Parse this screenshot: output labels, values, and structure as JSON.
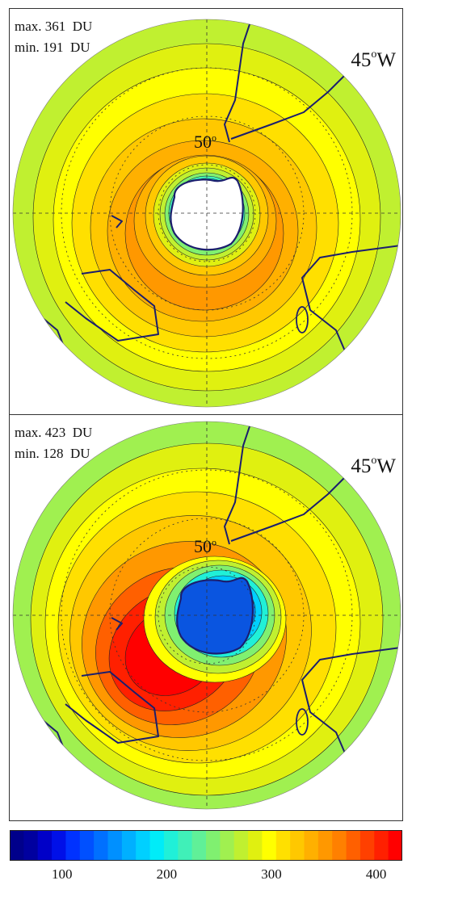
{
  "panels": [
    {
      "max_label": "max. 361  DU",
      "min_label": "min. 191  DU",
      "lon_value": "45",
      "lon_suffix": "W",
      "lat_value": "50",
      "lat_sup": "o",
      "lon_sup": "o",
      "max_du": 361,
      "min_du": 191
    },
    {
      "max_label": "max. 423  DU",
      "min_label": "min. 128  DU",
      "lon_value": "45",
      "lon_suffix": "W",
      "lat_value": "50",
      "lat_sup": "o",
      "lon_sup": "o",
      "max_du": 423,
      "min_du": 128
    }
  ],
  "colorbar": {
    "min": 50,
    "max": 425,
    "ticks": [
      "100",
      "200",
      "300",
      "400"
    ],
    "tick_values": [
      100,
      200,
      300,
      400
    ],
    "colors": [
      "#00008b",
      "#00009f",
      "#0000c8",
      "#0010e8",
      "#0032ff",
      "#0050ff",
      "#0070ff",
      "#0090ff",
      "#00b0ff",
      "#00d0ff",
      "#00ecf8",
      "#20f0d8",
      "#40f0b8",
      "#60f098",
      "#80f070",
      "#a0f050",
      "#c0f030",
      "#e0f010",
      "#ffff00",
      "#ffe000",
      "#ffc800",
      "#ffb000",
      "#ff9800",
      "#ff8000",
      "#ff6000",
      "#ff4000",
      "#ff2000",
      "#ff0000"
    ]
  },
  "style": {
    "land_outline": "#1b1e6e",
    "background": "#ffffff"
  }
}
